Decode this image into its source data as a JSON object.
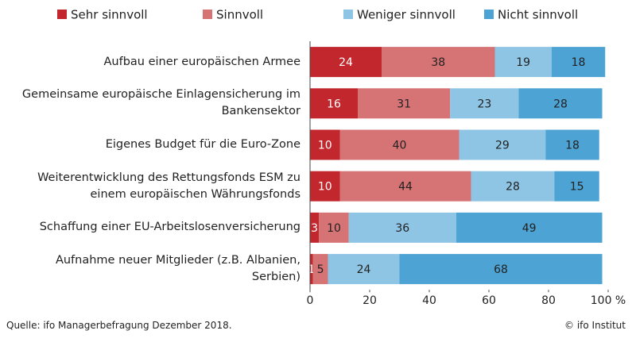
{
  "chart_data": {
    "type": "stacked-barh",
    "categories": [
      "Aufbau einer europäischen Armee",
      "Gemeinsame europäische Einlagensicherung im Bankensektor",
      "Eigenes Budget für die Euro-Zone",
      "Weiterentwicklung des Rettungsfonds ESM zu einem europäischen Währungsfonds",
      "Schaffung einer EU-Arbeitslosenversicherung",
      "Aufnahme neuer Mitglieder (z.B. Albanien, Serbien)"
    ],
    "series": [
      {
        "name": "Sehr sinnvoll",
        "color": "#c1272d",
        "label_color": "#ffffff",
        "values": [
          24,
          16,
          10,
          10,
          3,
          1
        ]
      },
      {
        "name": "Sinnvoll",
        "color": "#d67375",
        "label_color": "#222222",
        "values": [
          38,
          31,
          40,
          44,
          10,
          5
        ]
      },
      {
        "name": "Weniger sinnvoll",
        "color": "#8ec5e5",
        "label_color": "#222222",
        "values": [
          19,
          23,
          29,
          28,
          36,
          24
        ]
      },
      {
        "name": "Nicht sinnvoll",
        "color": "#4da3d3",
        "label_color": "#222222",
        "values": [
          18,
          28,
          18,
          15,
          49,
          68
        ]
      }
    ],
    "xlim": [
      0,
      100
    ],
    "xticks": [
      0,
      20,
      40,
      60,
      80,
      {
        "value": 100,
        "label": "100 %"
      }
    ],
    "source": "Quelle: ifo Managerbefragung Dezember 2018.",
    "credit": "© ifo Institut"
  }
}
